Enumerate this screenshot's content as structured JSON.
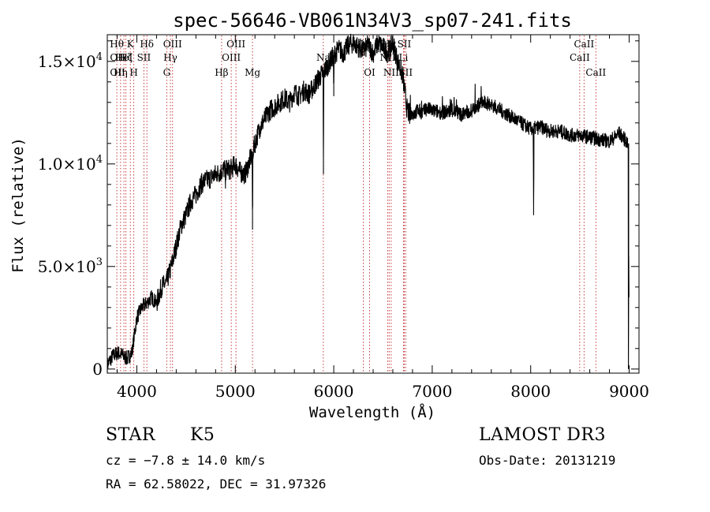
{
  "chart_data": {
    "type": "line",
    "title": "spec-56646-VB061N34V3_sp07-241.fits",
    "xlabel": "Wavelength (Å)",
    "ylabel": "Flux (relative)",
    "xlim": [
      3700,
      9100
    ],
    "ylim": [
      -200,
      16300
    ],
    "x_ticks": [
      4000,
      5000,
      6000,
      7000,
      8000,
      9000
    ],
    "x_tick_labels": [
      "4000",
      "5000",
      "6000",
      "7000",
      "8000",
      "9000"
    ],
    "y_ticks": [
      0,
      5000,
      10000,
      15000
    ],
    "y_tick_labels": [
      {
        "base": "0",
        "sup": ""
      },
      {
        "base": "5.0×10",
        "sup": "3"
      },
      {
        "base": "1.0×10",
        "sup": "4"
      },
      {
        "base": "1.5×10",
        "sup": "4"
      }
    ],
    "series": [
      {
        "name": "spectrum",
        "x": [
          3700,
          3750,
          3800,
          3850,
          3900,
          3950,
          4000,
          4050,
          4100,
          4150,
          4200,
          4250,
          4300,
          4350,
          4400,
          4450,
          4500,
          4550,
          4600,
          4650,
          4700,
          4750,
          4800,
          4850,
          4900,
          4950,
          5000,
          5050,
          5100,
          5150,
          5200,
          5250,
          5300,
          5350,
          5400,
          5450,
          5500,
          5550,
          5600,
          5650,
          5700,
          5750,
          5800,
          5850,
          5900,
          5950,
          6000,
          6050,
          6100,
          6150,
          6200,
          6250,
          6300,
          6350,
          6400,
          6450,
          6500,
          6550,
          6600,
          6650,
          6700,
          6750,
          6800,
          6850,
          6900,
          6950,
          7000,
          7100,
          7200,
          7300,
          7400,
          7500,
          7600,
          7700,
          7800,
          7900,
          8000,
          8100,
          8200,
          8300,
          8400,
          8500,
          8600,
          8700,
          8800,
          8900,
          8990
        ],
        "y": [
          200,
          600,
          800,
          700,
          500,
          800,
          2500,
          3000,
          3200,
          3500,
          3200,
          4000,
          4200,
          5000,
          6000,
          7000,
          7500,
          8200,
          8500,
          9000,
          9200,
          9300,
          9500,
          9600,
          9800,
          9700,
          10000,
          9600,
          9500,
          10200,
          11000,
          11800,
          12200,
          12600,
          12800,
          13000,
          13200,
          13000,
          13500,
          13300,
          13600,
          13400,
          13800,
          14200,
          14500,
          14900,
          15300,
          15600,
          15400,
          15800,
          15900,
          15700,
          15500,
          15800,
          15400,
          15900,
          15700,
          15400,
          15900,
          15000,
          14300,
          12500,
          12400,
          12600,
          12500,
          12700,
          12600,
          12500,
          12600,
          12400,
          12600,
          13000,
          12900,
          12600,
          12300,
          12000,
          11700,
          11800,
          11600,
          11600,
          11400,
          11400,
          11300,
          11200,
          11100,
          11500,
          11000
        ],
        "absorption_dips": [
          {
            "x": 5895,
            "y": 9500
          },
          {
            "x": 5175,
            "y": 6800
          },
          {
            "x": 8030,
            "y": 7500
          },
          {
            "x": 6000,
            "y": 13300
          },
          {
            "x": 4900,
            "y": 8800
          },
          {
            "x": 8995,
            "y": 4500
          }
        ],
        "edge_spikes": [
          {
            "x": 8990,
            "y": 11000
          },
          {
            "x": 8993,
            "y": 0
          },
          {
            "x": 8996,
            "y": 5500
          },
          {
            "x": 8998,
            "y": 3500
          }
        ]
      }
    ],
    "line_markers": [
      {
        "x": 3797,
        "label": "Hθ",
        "row": 0
      },
      {
        "x": 3835,
        "label": "Hη",
        "row": 2
      },
      {
        "x": 3869,
        "label": "HeI",
        "row": 1
      },
      {
        "x": 3889,
        "label": "Hζ",
        "row": 1
      },
      {
        "x": 3934,
        "label": "K",
        "row": 0
      },
      {
        "x": 3969,
        "label": "H",
        "row": 2
      },
      {
        "x": 4072,
        "label": "SII",
        "row": 1
      },
      {
        "x": 4102,
        "label": "Hδ",
        "row": 0
      },
      {
        "x": 4304,
        "label": "G",
        "row": 2
      },
      {
        "x": 4341,
        "label": "Hγ",
        "row": 1
      },
      {
        "x": 4363,
        "label": "OIII",
        "row": 0
      },
      {
        "x": 4861,
        "label": "Hβ",
        "row": 2
      },
      {
        "x": 4959,
        "label": "OIII",
        "row": 1
      },
      {
        "x": 5007,
        "label": "OIII",
        "row": 0
      },
      {
        "x": 5175,
        "label": "Mg",
        "row": 2
      },
      {
        "x": 5894,
        "label": "Na",
        "row": 1
      },
      {
        "x": 6300,
        "label": "OI",
        "row": 0
      },
      {
        "x": 6364,
        "label": "OI",
        "row": 2
      },
      {
        "x": 6548,
        "label": "NII",
        "row": 1
      },
      {
        "x": 6563,
        "label": "Hα",
        "row": 0
      },
      {
        "x": 6583,
        "label": "NII",
        "row": 2
      },
      {
        "x": 6708,
        "label": "Li",
        "row": 1
      },
      {
        "x": 6716,
        "label": "SII",
        "row": 0
      },
      {
        "x": 6731,
        "label": "SII",
        "row": 2
      },
      {
        "x": 8498,
        "label": "CaII",
        "row": 1
      },
      {
        "x": 8542,
        "label": "CaII",
        "row": 0
      },
      {
        "x": 8662,
        "label": "CaII",
        "row": 2
      }
    ],
    "line_marker_extra_labels": [
      {
        "x": 3727,
        "label": "OII",
        "row": 1
      },
      {
        "x": 3727,
        "label": "OII",
        "row": 2
      }
    ],
    "legend": "none",
    "grid": false
  },
  "info": {
    "object_class": "STAR",
    "subclass": "K5",
    "survey": "LAMOST DR3",
    "cz": "cz = −7.8 ± 14.0 km/s",
    "obs_date": "Obs-Date: 20131219",
    "coords": "RA =  62.58022, DEC =  31.97326"
  }
}
